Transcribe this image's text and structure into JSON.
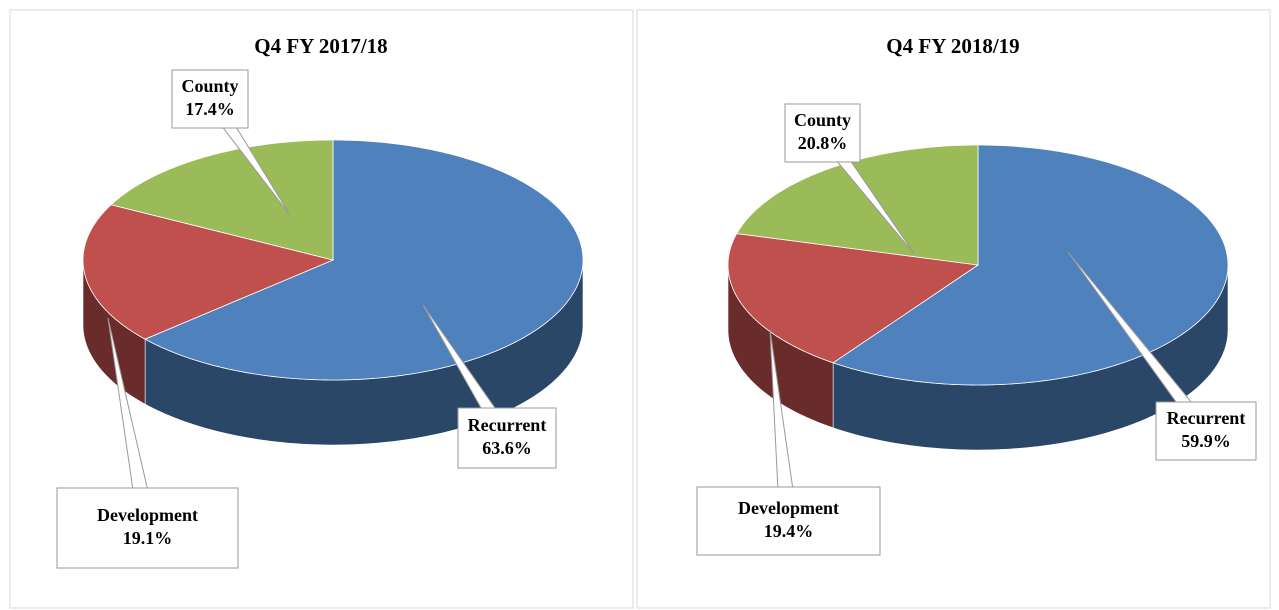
{
  "chart_data": [
    {
      "type": "pie",
      "title": "Q4 FY 2017/18",
      "categories": [
        "Recurrent",
        "Development",
        "County"
      ],
      "values": [
        63.6,
        19.1,
        17.4
      ],
      "value_labels": [
        "63.6%",
        "19.1%",
        "17.4%"
      ],
      "colors": [
        "#4f81bd",
        "#c0504d",
        "#9bbb59"
      ]
    },
    {
      "type": "pie",
      "title": "Q4 FY 2018/19",
      "categories": [
        "Recurrent",
        "Development",
        "County"
      ],
      "values": [
        59.9,
        19.4,
        20.8
      ],
      "value_labels": [
        "59.9%",
        "19.4%",
        "20.8%"
      ],
      "colors": [
        "#4f81bd",
        "#c0504d",
        "#9bbb59"
      ]
    }
  ]
}
